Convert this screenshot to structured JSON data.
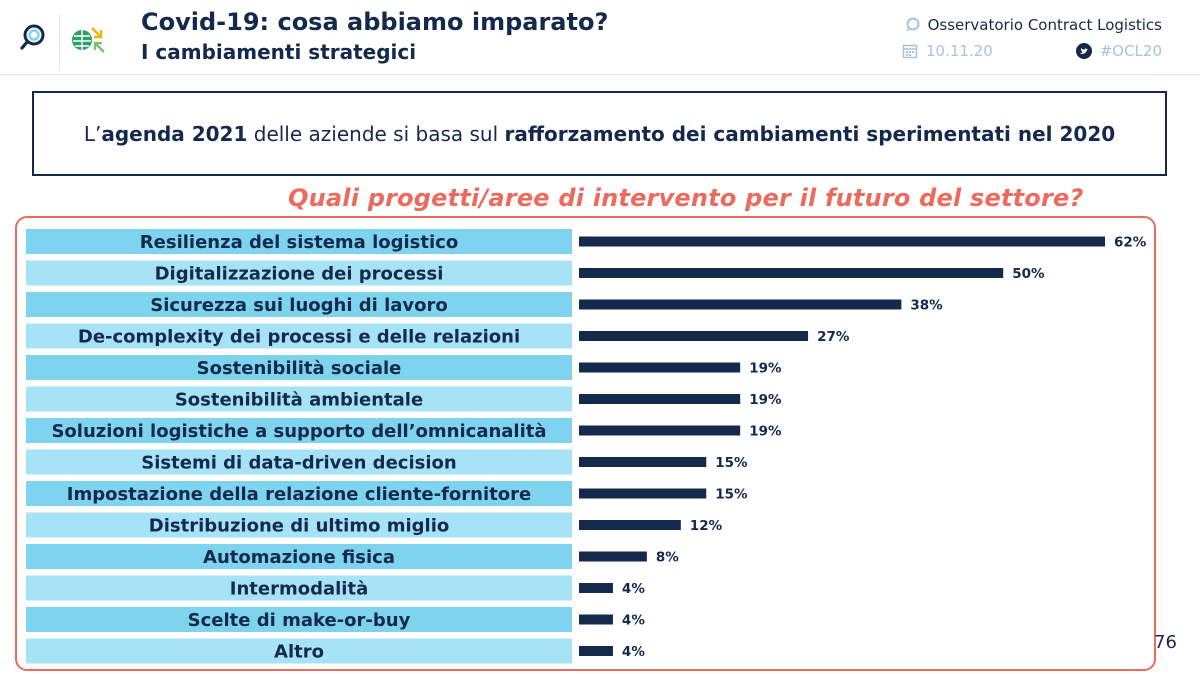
{
  "header": {
    "title": "Covid-19: cosa abbiamo imparato?",
    "subtitle": "I cambiamenti strategici",
    "organization": "Osservatorio Contract Logistics",
    "date": "10.11.20",
    "hashtag": "#OCL20",
    "icons": [
      "search-logo-icon",
      "globe-logo-icon",
      "chat-icon",
      "calendar-icon",
      "twitter-icon"
    ]
  },
  "banner": {
    "part1": "L’",
    "bold1": "agenda 2021",
    "part2": " delle aziende si basa sul ",
    "bold2": "rafforzamento dei cambiamenti sperimentati nel 2020"
  },
  "page_number": "76",
  "colors": {
    "navy": "#14294b",
    "coral": "#ec6b5e",
    "label_dark": "#7ed3ee",
    "label_light": "#a6e3f6",
    "muted": "#a9c2dd"
  },
  "chart_data": {
    "type": "bar",
    "orientation": "horizontal",
    "title": "Quali progetti/aree di intervento per il futuro del settore?",
    "xlabel": "",
    "ylabel": "",
    "xlim": [
      0,
      62
    ],
    "value_suffix": "%",
    "categories": [
      "Resilienza del sistema logistico",
      "Digitalizzazione dei processi",
      "Sicurezza sui luoghi di lavoro",
      "De-complexity dei processi e delle relazioni",
      "Sostenibilità sociale",
      "Sostenibilità ambientale",
      "Soluzioni logistiche a supporto dell’omnicanalità",
      "Sistemi di data-driven decision",
      "Impostazione della relazione cliente-fornitore",
      "Distribuzione di ultimo miglio",
      "Automazione fisica",
      "Intermodalità",
      "Scelte di make-or-buy",
      "Altro"
    ],
    "values": [
      62,
      50,
      38,
      27,
      19,
      19,
      19,
      15,
      15,
      12,
      8,
      4,
      4,
      4
    ]
  }
}
